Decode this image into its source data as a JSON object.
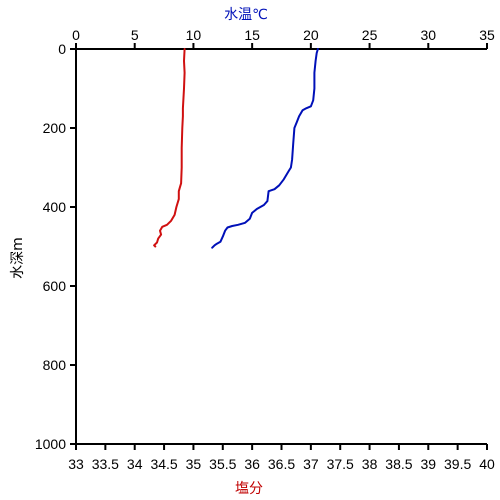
{
  "chart_data": {
    "type": "line",
    "y_axis": {
      "label": "水深m",
      "range": [
        0,
        1000
      ],
      "inverted": true,
      "ticks": [
        0,
        200,
        400,
        600,
        800,
        1000
      ],
      "tick_labels": [
        "0",
        "200",
        "400",
        "600",
        "800",
        "1000"
      ]
    },
    "x_top": {
      "label": "水温℃",
      "range": [
        0,
        35
      ],
      "ticks": [
        0,
        5,
        10,
        15,
        20,
        25,
        30,
        35
      ],
      "tick_labels": [
        "0",
        "5",
        "10",
        "15",
        "20",
        "25",
        "30",
        "35"
      ]
    },
    "x_bottom": {
      "label": "塩分",
      "range": [
        33,
        40
      ],
      "ticks": [
        33,
        33.5,
        34,
        34.5,
        35,
        35.5,
        36,
        36.5,
        37,
        37.5,
        38,
        38.5,
        39,
        39.5,
        40
      ],
      "tick_labels": [
        "33",
        "33.5",
        "34",
        "34.5",
        "35",
        "35.5",
        "36",
        "36.5",
        "37",
        "37.5",
        "38",
        "38.5",
        "39",
        "39.5",
        "40"
      ]
    },
    "grid": false,
    "colors": {
      "temperature": "#0010b8",
      "salinity": "#d01010",
      "top_label": "#0010b8",
      "bottom_label": "#c00000",
      "axis": "#000000"
    },
    "series": [
      {
        "axis": "x_top",
        "color": "#0010b8",
        "points": [
          [
            20.6,
            0
          ],
          [
            20.5,
            10
          ],
          [
            20.4,
            30
          ],
          [
            20.3,
            60
          ],
          [
            20.3,
            100
          ],
          [
            20.2,
            130
          ],
          [
            20.0,
            145
          ],
          [
            19.6,
            150
          ],
          [
            19.3,
            155
          ],
          [
            19.0,
            170
          ],
          [
            18.8,
            185
          ],
          [
            18.6,
            200
          ],
          [
            18.5,
            240
          ],
          [
            18.4,
            280
          ],
          [
            18.3,
            300
          ],
          [
            18.1,
            310
          ],
          [
            17.7,
            330
          ],
          [
            17.3,
            345
          ],
          [
            16.9,
            355
          ],
          [
            16.4,
            360
          ],
          [
            16.3,
            385
          ],
          [
            16.0,
            395
          ],
          [
            15.4,
            405
          ],
          [
            15.0,
            415
          ],
          [
            14.8,
            430
          ],
          [
            14.4,
            440
          ],
          [
            13.8,
            445
          ],
          [
            13.3,
            448
          ],
          [
            12.9,
            452
          ],
          [
            12.7,
            460
          ],
          [
            12.5,
            475
          ],
          [
            12.3,
            488
          ],
          [
            12.0,
            493
          ],
          [
            11.8,
            497
          ],
          [
            11.6,
            503
          ]
        ]
      },
      {
        "axis": "x_bottom",
        "color": "#d01010",
        "points": [
          [
            34.85,
            0
          ],
          [
            34.84,
            30
          ],
          [
            34.85,
            60
          ],
          [
            34.84,
            100
          ],
          [
            34.82,
            150
          ],
          [
            34.82,
            170
          ],
          [
            34.81,
            200
          ],
          [
            34.8,
            250
          ],
          [
            34.8,
            300
          ],
          [
            34.79,
            340
          ],
          [
            34.77,
            350
          ],
          [
            34.75,
            360
          ],
          [
            34.75,
            380
          ],
          [
            34.71,
            400
          ],
          [
            34.68,
            420
          ],
          [
            34.62,
            435
          ],
          [
            34.55,
            445
          ],
          [
            34.47,
            450
          ],
          [
            34.43,
            460
          ],
          [
            34.45,
            470
          ],
          [
            34.4,
            480
          ],
          [
            34.38,
            490
          ],
          [
            34.33,
            497
          ],
          [
            34.35,
            500
          ]
        ]
      }
    ]
  }
}
